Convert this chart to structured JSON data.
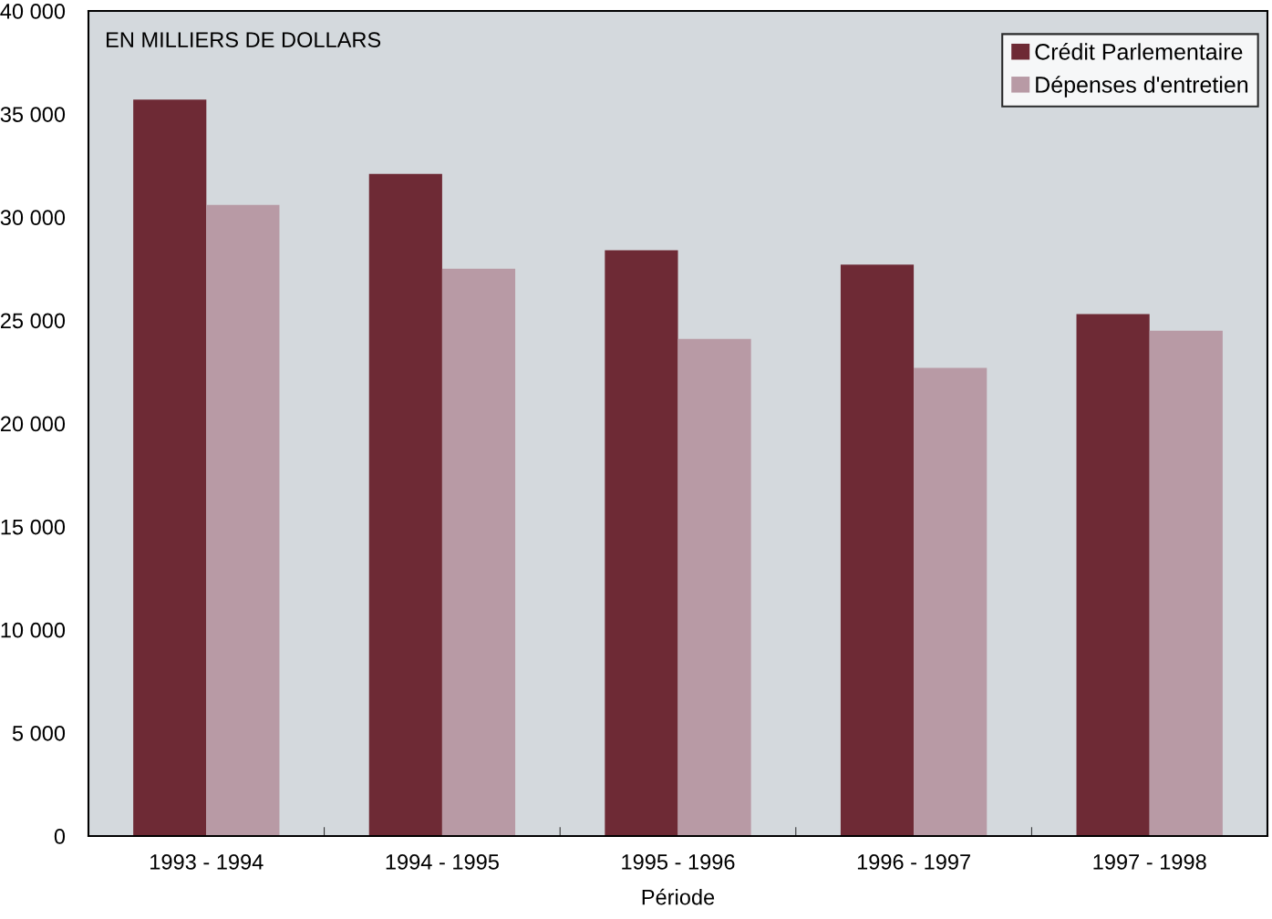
{
  "chart_data": {
    "type": "bar",
    "xlabel": "Période",
    "annotations": [
      "EN MILLIERS DE DOLLARS"
    ],
    "categories": [
      "1993 - 1994",
      "1994 - 1995",
      "1995 - 1996",
      "1996 - 1997",
      "1997 - 1998"
    ],
    "series": [
      {
        "name": "Crédit Parlementaire",
        "color": "#6e2a35",
        "values": [
          35700,
          32100,
          28400,
          27700,
          25300
        ]
      },
      {
        "name": "Dépenses d'entretien",
        "color": "#b89aa5",
        "values": [
          30600,
          27500,
          24100,
          22700,
          24500
        ]
      }
    ],
    "ylim": [
      0,
      40000
    ],
    "yticks": [
      {
        "value": 0,
        "label": "0"
      },
      {
        "value": 5000,
        "label": "5 000"
      },
      {
        "value": 10000,
        "label": "10 000"
      },
      {
        "value": 15000,
        "label": "15 000"
      },
      {
        "value": 20000,
        "label": "20 000"
      },
      {
        "value": 25000,
        "label": "25 000"
      },
      {
        "value": 30000,
        "label": "30 000"
      },
      {
        "value": 35000,
        "label": "35 000"
      },
      {
        "value": 40000,
        "label": "40 000"
      }
    ],
    "grid": false,
    "legend": "top right"
  }
}
